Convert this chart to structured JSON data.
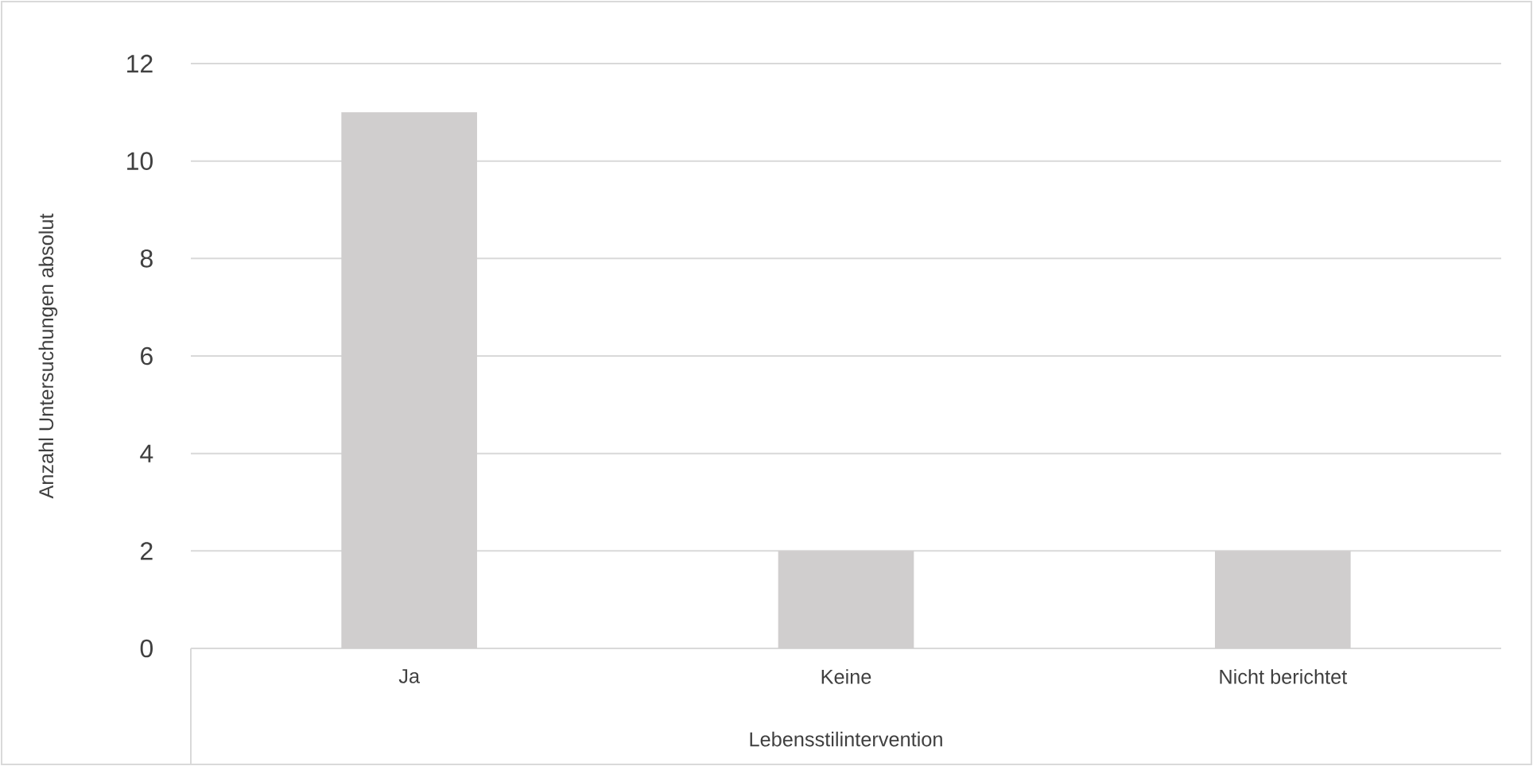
{
  "chart_data": {
    "type": "bar",
    "xlabel": "Lebensstilintervention",
    "ylabel": "Anzahl Untersuchungen absolut",
    "categories": [
      "Ja",
      "Keine",
      "Nicht berichtet"
    ],
    "values": [
      11,
      2,
      2
    ],
    "color": "#d0cece",
    "ylim": [
      0,
      12
    ],
    "yticks": [
      0,
      2,
      4,
      6,
      8,
      10,
      12
    ],
    "grid": "y"
  }
}
